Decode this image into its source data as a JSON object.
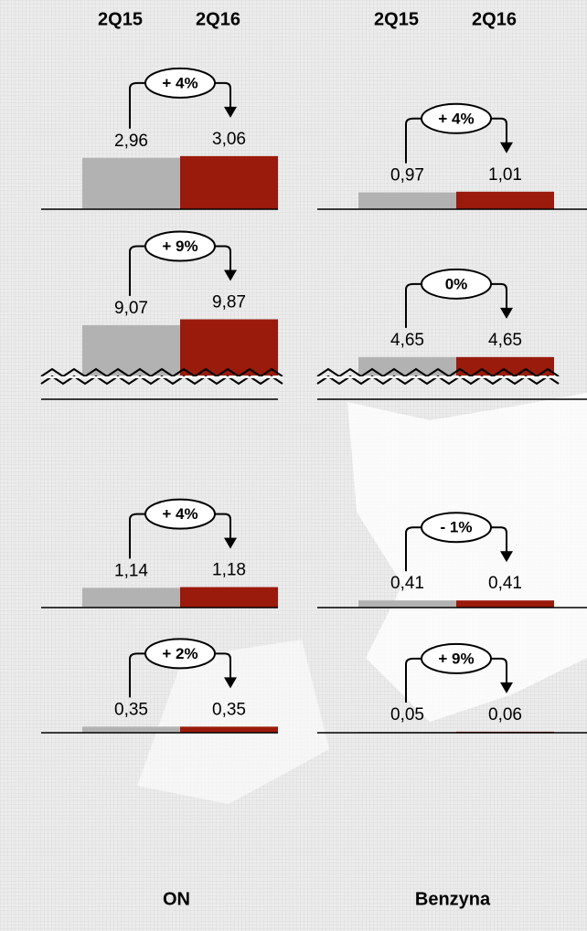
{
  "chart_data": [
    {
      "type": "bar",
      "title": "ON",
      "categories": [
        "2Q15",
        "2Q16"
      ],
      "colors": [
        "#b2b2b2",
        "#9a1a0c"
      ],
      "panels": [
        {
          "values": [
            2.96,
            3.06
          ],
          "value_labels": [
            "2,96",
            "3,06"
          ],
          "annotation": "+ 4%",
          "ylim": [
            0,
            4
          ],
          "axis_break": false
        },
        {
          "values": [
            9.07,
            9.87
          ],
          "value_labels": [
            "9,07",
            "9,87"
          ],
          "annotation": "+ 9%",
          "ylim": [
            2.1,
            11.7
          ],
          "axis_break": true
        },
        {
          "values": [
            1.14,
            1.18
          ],
          "value_labels": [
            "1,14",
            "1,18"
          ],
          "annotation": "+ 4%",
          "ylim": [
            0,
            4
          ],
          "axis_break": false
        },
        {
          "values": [
            0.35,
            0.35
          ],
          "value_labels": [
            "0,35",
            "0,35"
          ],
          "annotation": "+ 2%",
          "ylim": [
            0,
            4
          ],
          "axis_break": false
        }
      ]
    },
    {
      "type": "bar",
      "title": "Benzyna",
      "categories": [
        "2Q15",
        "2Q16"
      ],
      "colors": [
        "#b2b2b2",
        "#9a1a0c"
      ],
      "panels": [
        {
          "values": [
            0.97,
            1.01
          ],
          "value_labels": [
            "0,97",
            "1,01"
          ],
          "annotation": "+ 4%",
          "ylim": [
            0,
            4
          ],
          "axis_break": false
        },
        {
          "values": [
            4.65,
            4.65
          ],
          "value_labels": [
            "4,65",
            "4,65"
          ],
          "annotation": "0%",
          "ylim": [
            2.1,
            11.7
          ],
          "axis_break": true
        },
        {
          "values": [
            0.41,
            0.41
          ],
          "value_labels": [
            "0,41",
            "0,41"
          ],
          "annotation": "- 1%",
          "ylim": [
            0,
            4
          ],
          "axis_break": false
        },
        {
          "values": [
            0.05,
            0.06
          ],
          "value_labels": [
            "0,05",
            "0,06"
          ],
          "annotation": "+ 9%",
          "ylim": [
            0,
            4
          ],
          "axis_break": false
        }
      ]
    }
  ]
}
